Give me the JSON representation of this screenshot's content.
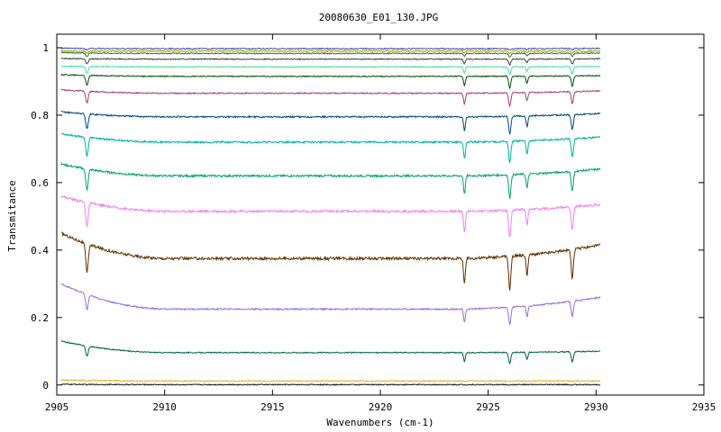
{
  "chart_data": {
    "type": "line",
    "title": "20080630_E01_130.JPG",
    "xlabel": "Wavenumbers (cm-1)",
    "ylabel": "Transmitance",
    "xlim": [
      2905,
      2935
    ],
    "ylim": [
      -0.03,
      1.04
    ],
    "grid": false,
    "legend": "none",
    "x_ticks": [
      "2905",
      "2910",
      "2915",
      "2920",
      "2925",
      "2930",
      "2935"
    ],
    "y_ticks": [
      "0",
      "0.2",
      "0.4",
      "0.6",
      "0.8",
      "1"
    ],
    "x_range_data": [
      2905.2,
      2930.2
    ],
    "absorption_lines": [
      {
        "center": 2906.4,
        "width": 0.08,
        "strength": 1.0
      },
      {
        "center": 2923.9,
        "width": 0.06,
        "strength": 0.9
      },
      {
        "center": 2926.0,
        "width": 0.07,
        "strength": 1.15
      },
      {
        "center": 2926.8,
        "width": 0.06,
        "strength": 0.7
      },
      {
        "center": 2928.9,
        "width": 0.07,
        "strength": 1.0
      }
    ],
    "series": [
      {
        "color": "#e6b020",
        "start": 0.015,
        "baseline": 0.012,
        "end": 0.012,
        "dip": 0.002
      },
      {
        "color": "#1a1a1a",
        "start": 0.002,
        "baseline": 0.001,
        "end": 0.001,
        "dip": 0.001
      },
      {
        "color": "#006048",
        "start": 0.13,
        "baseline": 0.096,
        "end": 0.1,
        "dip": 0.03
      },
      {
        "color": "#9370db",
        "start": 0.3,
        "baseline": 0.225,
        "end": 0.26,
        "dip": 0.045
      },
      {
        "color": "#603000",
        "start": 0.45,
        "baseline": 0.375,
        "end": 0.415,
        "dip": 0.085
      },
      {
        "color": "#ee82ee",
        "start": 0.56,
        "baseline": 0.515,
        "end": 0.535,
        "dip": 0.07
      },
      {
        "color": "#00a070",
        "start": 0.655,
        "baseline": 0.62,
        "end": 0.64,
        "dip": 0.06
      },
      {
        "color": "#00b0a8",
        "start": 0.745,
        "baseline": 0.72,
        "end": 0.735,
        "dip": 0.055
      },
      {
        "color": "#004880",
        "start": 0.81,
        "baseline": 0.795,
        "end": 0.805,
        "dip": 0.045
      },
      {
        "color": "#a04070",
        "start": 0.875,
        "baseline": 0.865,
        "end": 0.872,
        "dip": 0.035
      },
      {
        "color": "#005000",
        "start": 0.92,
        "baseline": 0.915,
        "end": 0.917,
        "dip": 0.03
      },
      {
        "color": "#40e0a0",
        "start": 0.945,
        "baseline": 0.943,
        "end": 0.944,
        "dip": 0.02
      },
      {
        "color": "#404040",
        "start": 0.968,
        "baseline": 0.966,
        "end": 0.967,
        "dip": 0.015
      },
      {
        "color": "#208020",
        "start": 0.985,
        "baseline": 0.983,
        "end": 0.984,
        "dip": 0.01
      },
      {
        "color": "#c09000",
        "start": 0.99,
        "baseline": 0.99,
        "end": 0.99,
        "dip": 0.006
      },
      {
        "color": "#3050c0",
        "start": 0.998,
        "baseline": 0.997,
        "end": 0.998,
        "dip": 0.004
      }
    ]
  }
}
